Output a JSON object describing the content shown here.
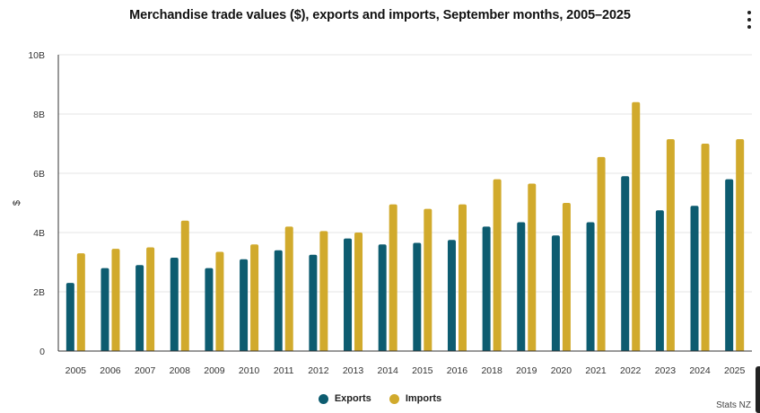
{
  "chart_data": {
    "type": "bar",
    "title": "Merchandise trade values ($), exports and imports, September months, 2005–2025",
    "xlabel": "",
    "ylabel": "$",
    "ylim": [
      0,
      10
    ],
    "yticks": [
      0,
      2,
      4,
      6,
      8,
      10
    ],
    "ytick_labels": [
      "0",
      "2B",
      "4B",
      "6B",
      "8B",
      "10B"
    ],
    "categories": [
      "2005",
      "2006",
      "2007",
      "2008",
      "2009",
      "2010",
      "2011",
      "2012",
      "2013",
      "2014",
      "2015",
      "2016",
      "2018",
      "2019",
      "2020",
      "2021",
      "2022",
      "2023",
      "2024",
      "2025"
    ],
    "series": [
      {
        "name": "Exports",
        "color": "#0d5c70",
        "values": [
          2.3,
          2.8,
          2.9,
          3.15,
          2.8,
          3.1,
          3.4,
          3.25,
          3.8,
          3.6,
          3.65,
          3.75,
          4.2,
          4.35,
          3.9,
          4.35,
          5.9,
          4.75,
          4.9,
          5.8
        ]
      },
      {
        "name": "Imports",
        "color": "#d1aa2c",
        "values": [
          3.3,
          3.45,
          3.5,
          4.4,
          3.35,
          3.6,
          4.2,
          4.05,
          4.0,
          4.95,
          4.8,
          4.95,
          5.8,
          5.65,
          5.0,
          6.55,
          8.4,
          7.15,
          7.0,
          7.15
        ]
      }
    ],
    "grid": true,
    "legend_position": "bottom-center"
  },
  "menu_icon": "more-vertical-icon",
  "legend": {
    "exports_label": "Exports",
    "imports_label": "Imports"
  },
  "source_credit": "Stats NZ"
}
